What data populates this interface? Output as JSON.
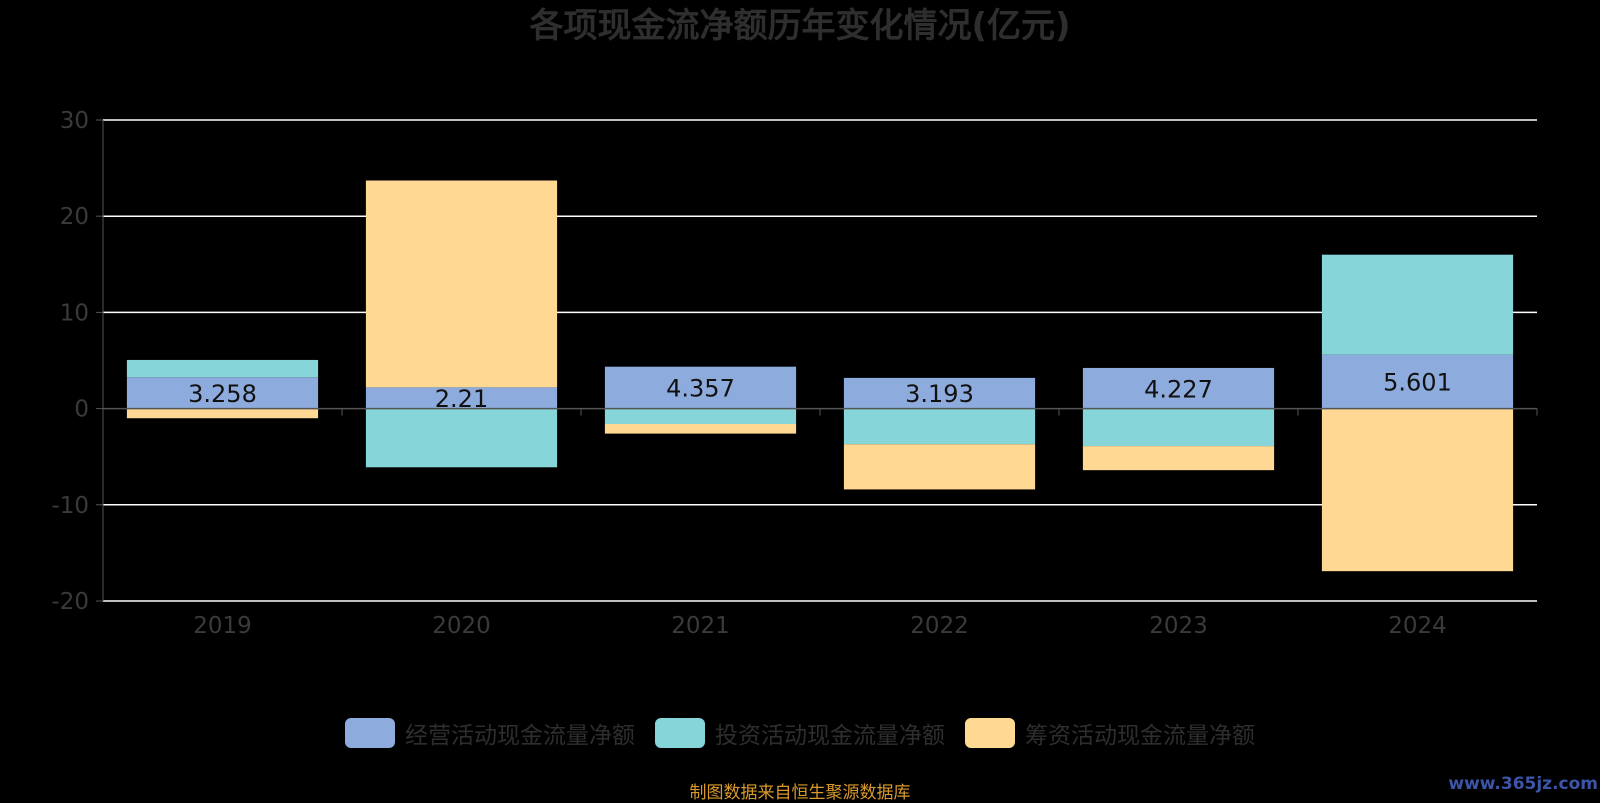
{
  "colors": {
    "background": "#000000",
    "operating": "#8eabdd",
    "investing": "#86d5d9",
    "financing": "#ffd994",
    "grid": "#ffffff",
    "axis_text": "#3a3a3a",
    "title": "#2e2e2e",
    "source": "#d99a2b",
    "watermark": "#3d55a8"
  },
  "source_note": "制图数据来自恒生聚源数据库",
  "watermark": "www.365jz.com",
  "chart_data": {
    "type": "bar",
    "stacked": true,
    "title": "各项现金流净额历年变化情况(亿元)",
    "xlabel": "",
    "ylabel": "",
    "categories": [
      "2019",
      "2020",
      "2021",
      "2022",
      "2023",
      "2024"
    ],
    "ylim": [
      -20,
      30
    ],
    "yticks": [
      -20,
      -10,
      0,
      10,
      20,
      30
    ],
    "grid": true,
    "legend_position": "bottom",
    "series": [
      {
        "name": "经营活动现金流量净额",
        "values": [
          3.258,
          2.21,
          4.357,
          3.193,
          4.227,
          5.601
        ],
        "labels": [
          "3.258",
          "2.21",
          "4.357",
          "3.193",
          "4.227",
          "5.601"
        ],
        "color": "#8eabdd"
      },
      {
        "name": "投资活动现金流量净额",
        "values": [
          1.8,
          -6.1,
          -1.6,
          -3.7,
          -3.9,
          10.4
        ],
        "color": "#86d5d9"
      },
      {
        "name": "筹资活动现金流量净额",
        "values": [
          -1.0,
          21.5,
          -1.0,
          -4.7,
          -2.5,
          -16.9
        ],
        "color": "#ffd994"
      }
    ]
  }
}
